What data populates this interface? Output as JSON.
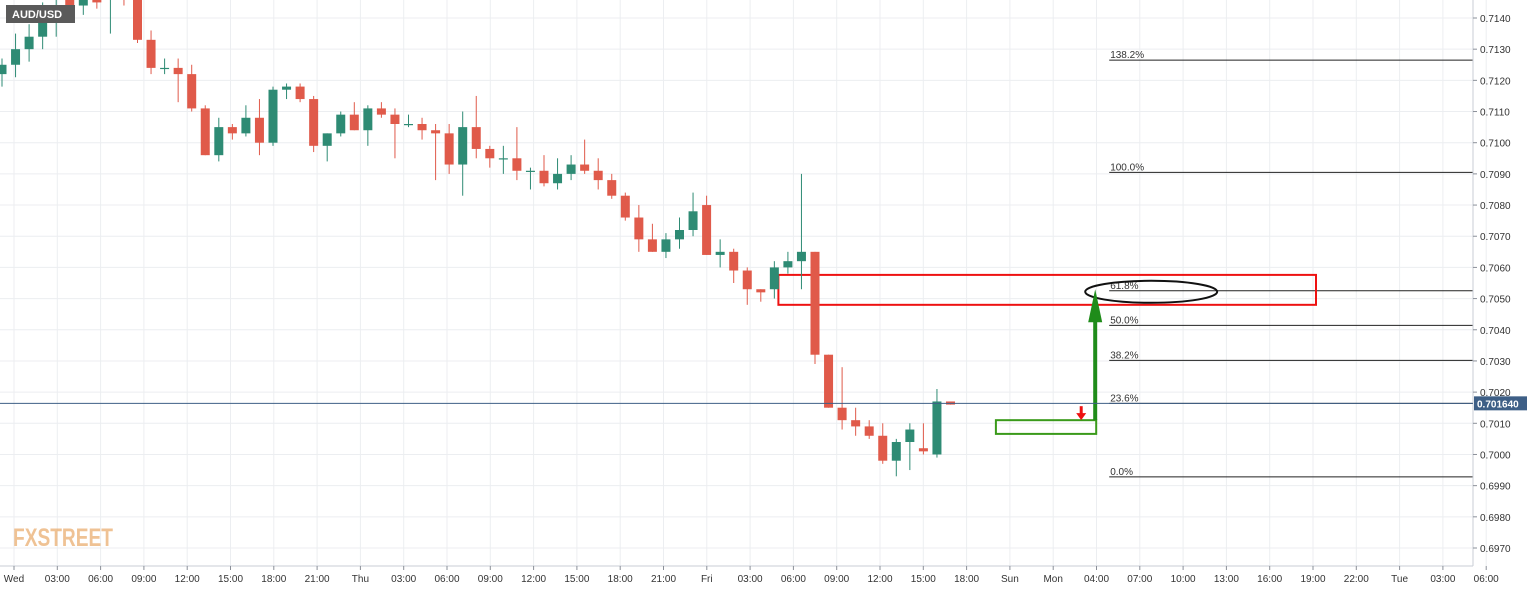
{
  "chart_data": {
    "type": "candlestick",
    "symbol": "AUD/USD",
    "last_price": "0.701640",
    "watermark": "FXSTREET",
    "ylim": [
      0.6964,
      0.7147
    ],
    "y_ticks": [
      "0.7140",
      "0.7130",
      "0.7120",
      "0.7110",
      "0.7100",
      "0.7090",
      "0.7080",
      "0.7070",
      "0.7060",
      "0.7050",
      "0.7040",
      "0.7030",
      "0.7020",
      "0.7010",
      "0.7000",
      "0.6990",
      "0.6980",
      "0.6970"
    ],
    "x_ticks": [
      "Wed",
      "03:00",
      "06:00",
      "09:00",
      "12:00",
      "15:00",
      "18:00",
      "21:00",
      "Thu",
      "03:00",
      "06:00",
      "09:00",
      "12:00",
      "15:00",
      "18:00",
      "21:00",
      "Fri",
      "03:00",
      "06:00",
      "09:00",
      "12:00",
      "15:00",
      "18:00",
      "Sun",
      "Mon",
      "04:00",
      "07:00",
      "10:00",
      "13:00",
      "16:00",
      "19:00",
      "22:00",
      "Tue",
      "03:00",
      "06:00"
    ],
    "candles": [
      [
        0.7122,
        0.7127,
        0.7118,
        0.7125
      ],
      [
        0.7125,
        0.7135,
        0.7121,
        0.713
      ],
      [
        0.713,
        0.7138,
        0.7126,
        0.7134
      ],
      [
        0.7134,
        0.7145,
        0.713,
        0.714
      ],
      [
        0.714,
        0.7146,
        0.7134,
        0.7144
      ],
      [
        0.7147,
        0.7148,
        0.714,
        0.7144
      ],
      [
        0.7144,
        0.7148,
        0.7141,
        0.7147
      ],
      [
        0.7147,
        0.7148,
        0.7143,
        0.7145
      ],
      [
        0.7146,
        0.7148,
        0.7135,
        0.7147
      ],
      [
        0.7147,
        0.7148,
        0.7144,
        0.7146
      ],
      [
        0.7146,
        0.7148,
        0.7132,
        0.7133
      ],
      [
        0.7133,
        0.7136,
        0.7122,
        0.7124
      ],
      [
        0.7124,
        0.7127,
        0.7122,
        0.7124
      ],
      [
        0.7124,
        0.7127,
        0.7113,
        0.7122
      ],
      [
        0.7122,
        0.7125,
        0.711,
        0.7111
      ],
      [
        0.7111,
        0.7112,
        0.7096,
        0.7096
      ],
      [
        0.7096,
        0.7108,
        0.7094,
        0.7105
      ],
      [
        0.7105,
        0.7106,
        0.7101,
        0.7103
      ],
      [
        0.7103,
        0.7112,
        0.7102,
        0.7108
      ],
      [
        0.7108,
        0.7114,
        0.7096,
        0.71
      ],
      [
        0.71,
        0.7118,
        0.7099,
        0.7117
      ],
      [
        0.7117,
        0.7119,
        0.7114,
        0.7118
      ],
      [
        0.7118,
        0.7119,
        0.7113,
        0.7114
      ],
      [
        0.7114,
        0.7115,
        0.7097,
        0.7099
      ],
      [
        0.7099,
        0.7103,
        0.7094,
        0.7103
      ],
      [
        0.7103,
        0.711,
        0.7102,
        0.7109
      ],
      [
        0.7109,
        0.7113,
        0.7104,
        0.7104
      ],
      [
        0.7104,
        0.7112,
        0.7099,
        0.7111
      ],
      [
        0.7111,
        0.7113,
        0.7108,
        0.7109
      ],
      [
        0.7109,
        0.7111,
        0.7095,
        0.7106
      ],
      [
        0.7106,
        0.7109,
        0.7105,
        0.7106
      ],
      [
        0.7106,
        0.7108,
        0.7101,
        0.7104
      ],
      [
        0.7104,
        0.7106,
        0.7088,
        0.7103
      ],
      [
        0.7103,
        0.7106,
        0.709,
        0.7093
      ],
      [
        0.7093,
        0.711,
        0.7083,
        0.7105
      ],
      [
        0.7105,
        0.7115,
        0.7095,
        0.7098
      ],
      [
        0.7098,
        0.7099,
        0.7092,
        0.7095
      ],
      [
        0.7095,
        0.7099,
        0.709,
        0.7095
      ],
      [
        0.7095,
        0.7105,
        0.7088,
        0.7091
      ],
      [
        0.7091,
        0.7092,
        0.7085,
        0.7091
      ],
      [
        0.7091,
        0.7096,
        0.7086,
        0.7087
      ],
      [
        0.7087,
        0.7095,
        0.7085,
        0.709
      ],
      [
        0.709,
        0.7096,
        0.7088,
        0.7093
      ],
      [
        0.7093,
        0.7101,
        0.709,
        0.7091
      ],
      [
        0.7091,
        0.7095,
        0.7085,
        0.7088
      ],
      [
        0.7088,
        0.709,
        0.7082,
        0.7083
      ],
      [
        0.7083,
        0.7084,
        0.7075,
        0.7076
      ],
      [
        0.7076,
        0.708,
        0.7065,
        0.7069
      ],
      [
        0.7069,
        0.7074,
        0.7065,
        0.7065
      ],
      [
        0.7065,
        0.7071,
        0.7063,
        0.7069
      ],
      [
        0.7069,
        0.7076,
        0.7066,
        0.7072
      ],
      [
        0.7072,
        0.7084,
        0.707,
        0.7078
      ],
      [
        0.708,
        0.7083,
        0.7064,
        0.7064
      ],
      [
        0.7064,
        0.7069,
        0.706,
        0.7065
      ],
      [
        0.7065,
        0.7066,
        0.7055,
        0.7059
      ],
      [
        0.7059,
        0.706,
        0.7048,
        0.7053
      ],
      [
        0.7053,
        0.7053,
        0.7049,
        0.7052
      ],
      [
        0.7053,
        0.7062,
        0.705,
        0.706
      ],
      [
        0.706,
        0.7065,
        0.7058,
        0.7062
      ],
      [
        0.7062,
        0.709,
        0.7053,
        0.7065
      ],
      [
        0.7065,
        0.7065,
        0.7029,
        0.7032
      ],
      [
        0.7032,
        0.7032,
        0.7015,
        0.7015
      ],
      [
        0.7015,
        0.7028,
        0.7008,
        0.7011
      ],
      [
        0.7011,
        0.7015,
        0.7006,
        0.7009
      ],
      [
        0.7009,
        0.7011,
        0.7005,
        0.7006
      ],
      [
        0.7006,
        0.701,
        0.6997,
        0.6998
      ],
      [
        0.6998,
        0.7005,
        0.6993,
        0.7004
      ],
      [
        0.7004,
        0.701,
        0.6995,
        0.7008
      ],
      [
        0.7002,
        0.701,
        0.7,
        0.7001
      ],
      [
        0.7,
        0.7021,
        0.6999,
        0.7017
      ],
      [
        0.7017,
        0.7017,
        0.7016,
        0.7016
      ]
    ],
    "fibonacci": {
      "x_start_label": "Mon",
      "levels": [
        {
          "label": "138.2%",
          "price": 0.71265
        },
        {
          "label": "100.0%",
          "price": 0.70905
        },
        {
          "label": "61.8%",
          "price": 0.70525
        },
        {
          "label": "50.0%",
          "price": 0.70414
        },
        {
          "label": "38.2%",
          "price": 0.70302
        },
        {
          "label": "23.6%",
          "price": 0.70164
        },
        {
          "label": "0.0%",
          "price": 0.69928
        }
      ]
    },
    "annotations": {
      "red_zone": {
        "price_top": 0.70576,
        "price_bottom": 0.7048,
        "color": "#ee1111"
      },
      "green_zone": {
        "price_top": 0.7011,
        "price_bottom": 0.70066,
        "color": "#3a9a1a"
      },
      "ellipse_level": "61.8%",
      "green_arrow": {
        "from_price": 0.7011,
        "to_price": 0.7053
      },
      "red_arrow": {
        "from_price": 0.70154,
        "to_price": 0.7011
      }
    },
    "colors": {
      "bull": "#2e8b74",
      "bear": "#e05a4a",
      "price_line": "#3e5f86",
      "grid": "#eceef1",
      "fib_line": "#222222"
    }
  }
}
